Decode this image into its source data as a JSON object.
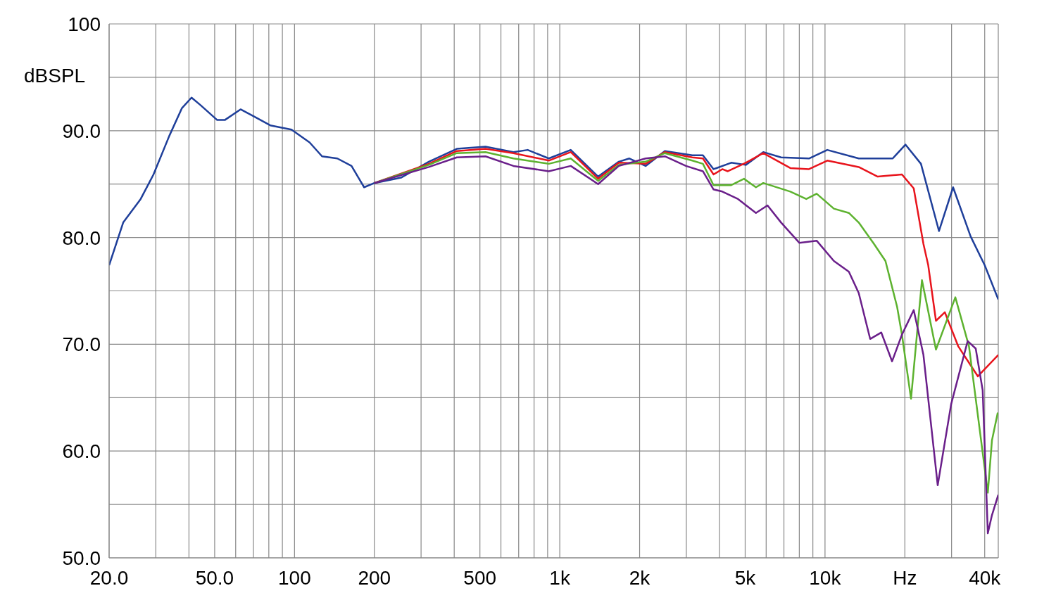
{
  "chart_data": {
    "type": "line",
    "ylabel": "dBSPL",
    "grid": true,
    "log": "x",
    "line_style": "solid",
    "xlim": [
      20,
      45000
    ],
    "ylim": [
      50,
      100
    ],
    "xticks": [
      {
        "value": 20,
        "label": "20.0"
      },
      {
        "value": 30,
        "label": null
      },
      {
        "value": 40,
        "label": null
      },
      {
        "value": 50,
        "label": "50.0"
      },
      {
        "value": 60,
        "label": null
      },
      {
        "value": 70,
        "label": null
      },
      {
        "value": 80,
        "label": null
      },
      {
        "value": 90,
        "label": null
      },
      100,
      {
        "value": 200,
        "label": "200"
      },
      {
        "value": 300,
        "label": null
      },
      {
        "value": 400,
        "label": null
      },
      {
        "value": 500,
        "label": "500"
      },
      {
        "value": 600,
        "label": null
      },
      {
        "value": 700,
        "label": null
      },
      {
        "value": 800,
        "label": null
      },
      {
        "value": 900,
        "label": null
      },
      {
        "value": 1000,
        "label": "1k"
      },
      {
        "value": 2000,
        "label": "2k"
      },
      {
        "value": 3000,
        "label": null
      },
      {
        "value": 4000,
        "label": null
      },
      {
        "value": 5000,
        "label": "5k"
      },
      {
        "value": 6000,
        "label": null
      },
      {
        "value": 7000,
        "label": null
      },
      {
        "value": 8000,
        "label": null
      },
      {
        "value": 9000,
        "label": null
      },
      {
        "value": 10000,
        "label": "10k"
      },
      {
        "value": 20000,
        "label": "Hz"
      },
      {
        "value": 30000,
        "label": null
      },
      {
        "value": 40000,
        "label": "40k"
      }
    ],
    "yticks": [
      {
        "value": 50,
        "label": "50.0"
      },
      {
        "value": 55,
        "label": null
      },
      {
        "value": 60,
        "label": "60.0"
      },
      {
        "value": 65,
        "label": null
      },
      {
        "value": 70,
        "label": "70.0"
      },
      {
        "value": 75,
        "label": null
      },
      {
        "value": 80,
        "label": "80.0"
      },
      {
        "value": 85,
        "label": null
      },
      {
        "value": 90,
        "label": "90.0"
      },
      {
        "value": 95,
        "label": null
      },
      100
    ],
    "series": [
      {
        "color": "#1f3f9a",
        "x": [
          20,
          22.6,
          26.3,
          29.4,
          33.7,
          37.6,
          40.9,
          44.2,
          51.1,
          54.6,
          62.6,
          70.8,
          81,
          97.4,
          114,
          127,
          145,
          164,
          183,
          200,
          252,
          321,
          409,
          525,
          669,
          757,
          909,
          1100,
          1395,
          1670,
          1830,
          2107,
          2490,
          3160,
          3465,
          3800,
          4430,
          5030,
          5850,
          6830,
          8700,
          10200,
          13400,
          18000,
          20100,
          23000,
          26900,
          30400,
          35400,
          40000,
          45000
        ],
        "values": [
          77.4,
          81.4,
          83.6,
          85.9,
          89.5,
          92.1,
          93.1,
          92.4,
          91.0,
          91.0,
          92.0,
          91.3,
          90.5,
          90.1,
          88.9,
          87.6,
          87.4,
          86.7,
          84.7,
          85.1,
          85.6,
          87.1,
          88.3,
          88.5,
          88.0,
          88.2,
          87.4,
          88.2,
          85.7,
          87.1,
          87.4,
          86.7,
          88.1,
          87.7,
          87.7,
          86.4,
          87.0,
          86.8,
          88.0,
          87.5,
          87.4,
          88.2,
          87.4,
          87.4,
          88.7,
          86.9,
          80.6,
          84.7,
          80.1,
          77.4,
          74.2
        ]
      },
      {
        "color": "#e8141c",
        "x": [
          200,
          321,
          409,
          525,
          669,
          909,
          1100,
          1395,
          1670,
          2107,
          2490,
          3160,
          3465,
          3800,
          4100,
          4300,
          5030,
          5850,
          7400,
          8700,
          10200,
          13400,
          15800,
          19500,
          21600,
          23500,
          24500,
          26200,
          28300,
          31800,
          37700,
          45000
        ],
        "values": [
          85.1,
          86.9,
          88.1,
          88.3,
          87.9,
          87.2,
          88.0,
          85.5,
          87.0,
          86.9,
          88.0,
          87.5,
          87.4,
          85.9,
          86.4,
          86.2,
          87.0,
          87.9,
          86.5,
          86.4,
          87.2,
          86.6,
          85.7,
          85.9,
          84.6,
          79.4,
          77.4,
          72.2,
          73.0,
          69.8,
          67.0,
          69.0
        ]
      },
      {
        "color": "#5db22f",
        "x": [
          200,
          321,
          409,
          525,
          669,
          909,
          1100,
          1395,
          1670,
          2107,
          2490,
          3160,
          3465,
          3800,
          4430,
          4950,
          5490,
          5850,
          7400,
          8500,
          9300,
          10800,
          12300,
          13400,
          15300,
          16900,
          18700,
          19500,
          21100,
          23200,
          26200,
          31000,
          34900,
          41100,
          42600,
          44800
        ],
        "values": [
          85.1,
          86.8,
          87.9,
          88.0,
          87.4,
          86.9,
          87.4,
          85.3,
          86.8,
          87.1,
          87.9,
          87.2,
          86.9,
          84.9,
          84.9,
          85.5,
          84.7,
          85.1,
          84.3,
          83.6,
          84.1,
          82.7,
          82.3,
          81.4,
          79.4,
          77.8,
          73.5,
          70.9,
          64.9,
          76.0,
          69.5,
          74.4,
          69.8,
          56.1,
          61.0,
          63.6
        ]
      },
      {
        "color": "#6a1f8a",
        "x": [
          200,
          321,
          409,
          525,
          669,
          909,
          1100,
          1395,
          1670,
          2107,
          2490,
          2990,
          3465,
          3800,
          4100,
          4700,
          5490,
          6070,
          6830,
          8000,
          9300,
          10800,
          12300,
          13400,
          14800,
          16300,
          17900,
          19500,
          21600,
          23500,
          26600,
          29900,
          34500,
          37000,
          39300,
          41100,
          42600,
          45000
        ],
        "values": [
          85.1,
          86.6,
          87.5,
          87.6,
          86.7,
          86.2,
          86.7,
          85.0,
          86.7,
          87.4,
          87.6,
          86.7,
          86.2,
          84.5,
          84.3,
          83.6,
          82.3,
          83.0,
          81.4,
          79.5,
          79.7,
          77.8,
          76.8,
          74.8,
          70.5,
          71.1,
          68.4,
          70.9,
          73.2,
          69.0,
          56.8,
          64.4,
          70.3,
          69.6,
          65.7,
          52.3,
          54.0,
          55.9
        ]
      }
    ]
  }
}
